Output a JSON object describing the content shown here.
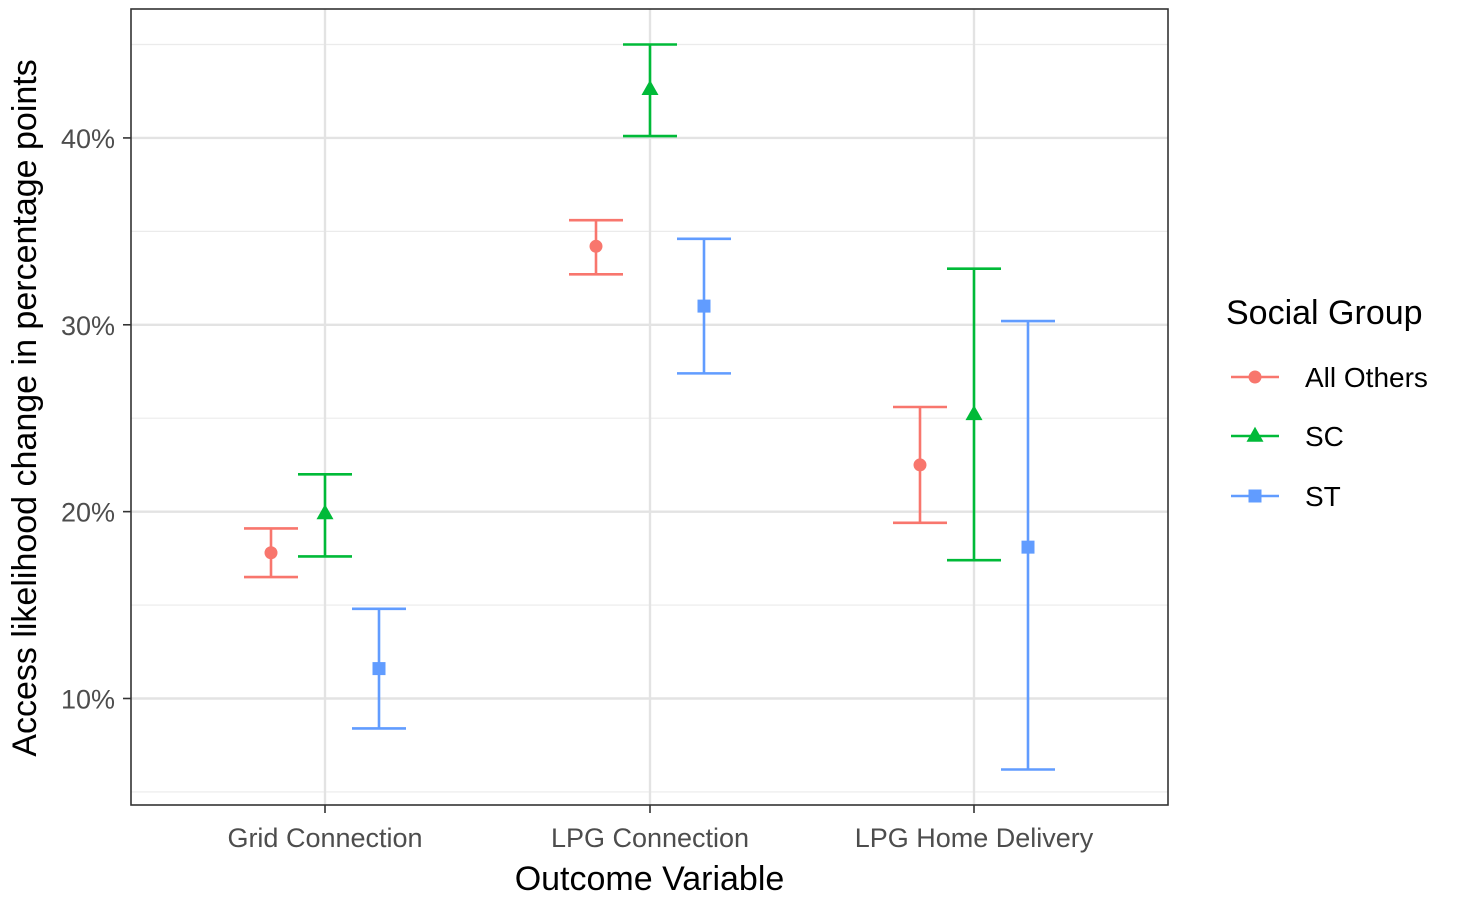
{
  "chart_data": {
    "type": "errorbar",
    "categories": [
      "Grid Connection",
      "LPG Connection",
      "LPG Home Delivery"
    ],
    "xlabel": "Outcome Variable",
    "ylabel": "Access likelihood change in percentage points",
    "ylim": [
      4.3,
      46.9
    ],
    "yticks": [
      10,
      20,
      30,
      40
    ],
    "ytick_labels": [
      "10%",
      "20%",
      "30%",
      "40%"
    ],
    "grid": true,
    "legend": {
      "title": "Social Group",
      "position": "right"
    },
    "series": [
      {
        "name": "All Others",
        "color": "#F8766D",
        "shape": "circle",
        "estimate": [
          17.8,
          34.2,
          22.5
        ],
        "lower": [
          16.5,
          32.7,
          19.4
        ],
        "upper": [
          19.1,
          35.6,
          25.6
        ]
      },
      {
        "name": "SC",
        "color": "#00BA38",
        "shape": "triangle",
        "estimate": [
          19.9,
          42.6,
          25.2
        ],
        "lower": [
          17.6,
          40.1,
          17.4
        ],
        "upper": [
          22.0,
          45.0,
          33.0
        ]
      },
      {
        "name": "ST",
        "color": "#619CFF",
        "shape": "square",
        "estimate": [
          11.6,
          31.0,
          18.1
        ],
        "lower": [
          8.4,
          27.4,
          6.2
        ],
        "upper": [
          14.8,
          34.6,
          30.2
        ]
      }
    ]
  }
}
